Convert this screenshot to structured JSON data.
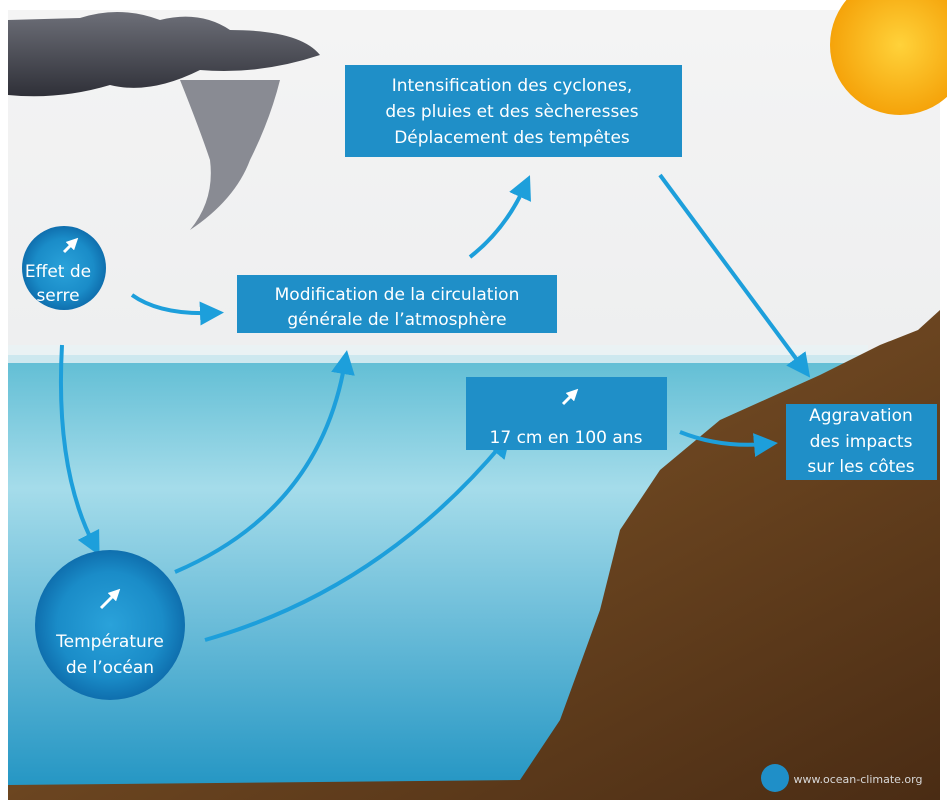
{
  "nodes": [
    {
      "lines": [
        "Intensification des cyclones,",
        "des pluies et des sècheresses",
        "Déplacement des tempêtes"
      ]
    },
    {
      "lines": [
        "Effet de",
        "serre"
      ]
    },
    {
      "lines": [
        "Modification de la circulation",
        "générale de l’atmosphère"
      ]
    },
    {
      "lines": [
        "17 cm en 100 ans"
      ]
    },
    {
      "lines": [
        "Aggravation",
        "des impacts",
        "sur les côtes"
      ]
    },
    {
      "lines": [
        "Température",
        "de l’océan"
      ]
    }
  ],
  "footer": {
    "website": "www.ocean-climate.org"
  }
}
